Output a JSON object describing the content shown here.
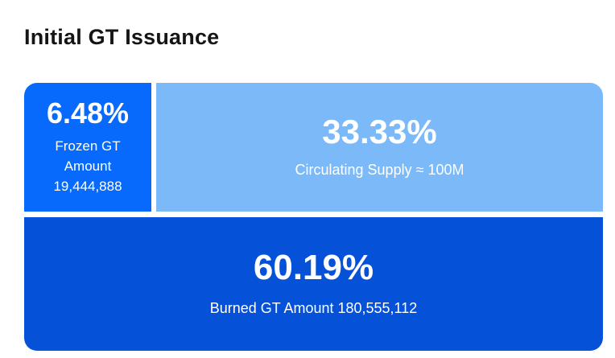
{
  "page": {
    "title": "Initial GT Issuance",
    "background": "#ffffff",
    "title_color": "#151515"
  },
  "chart_data": {
    "type": "treemap",
    "title": "Initial GT Issuance",
    "layout_hints": {
      "legend": false,
      "grid": false,
      "arrangement": "two rows: small+large block on top, full-width block on bottom",
      "total_percent": 100,
      "text_color": "#ffffff"
    },
    "segments": [
      {
        "id": "frozen",
        "percent_label": "6.48%",
        "value": 6.48,
        "label": "Frozen GT Amount",
        "amount": "19,444,888",
        "color": "#076AFD"
      },
      {
        "id": "circulating",
        "percent_label": "33.33%",
        "value": 33.33,
        "label": "Circulating Supply ≈ 100M",
        "color": "#7BB9F9"
      },
      {
        "id": "burned",
        "percent_label": "60.19%",
        "value": 60.19,
        "label": "Burned GT Amount 180,555,112",
        "color": "#0552D9"
      }
    ]
  }
}
